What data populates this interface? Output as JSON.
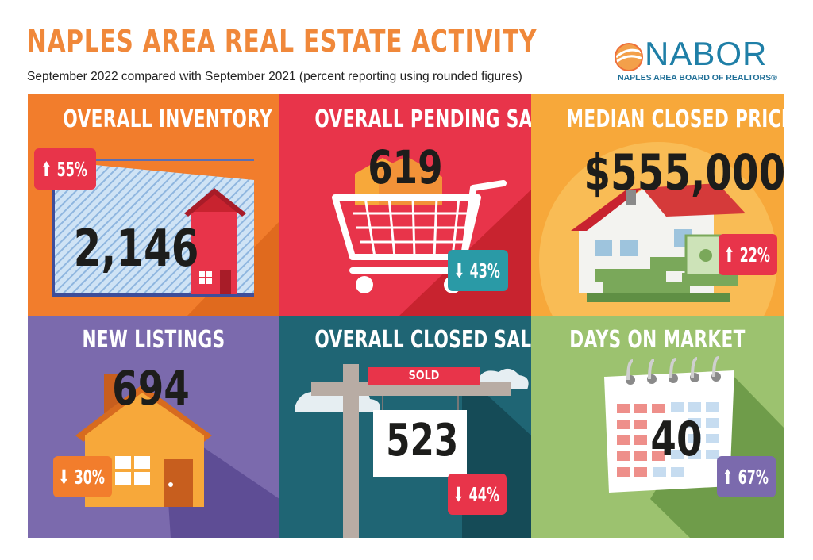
{
  "header": {
    "title": "NAPLES AREA REAL ESTATE ACTIVITY",
    "subtitle": "September 2022 compared with September 2021 (percent reporting using rounded figures)"
  },
  "logo": {
    "wordmark": "NABOR",
    "tagline": "NAPLES AREA BOARD OF REALTORS®"
  },
  "colors": {
    "title": "#f0883a",
    "orange": "#f27d2c",
    "red": "#e8344a",
    "amber": "#f7a83a",
    "purple": "#7b6aad",
    "teal": "#1f6574",
    "green": "#9cc26f"
  },
  "tiles": [
    {
      "title": "OVERALL INVENTORY",
      "value": "2,146",
      "change": "55%",
      "direction": "up",
      "icon": "house-chart-icon"
    },
    {
      "title": "OVERALL PENDING SALES",
      "value": "619",
      "change": "43%",
      "direction": "down",
      "icon": "shopping-cart-icon"
    },
    {
      "title": "MEDIAN CLOSED PRICE",
      "value": "$555,000",
      "change": "22%",
      "direction": "up",
      "icon": "house-money-icon"
    },
    {
      "title": "NEW LISTINGS",
      "value": "694",
      "change": "30%",
      "direction": "down",
      "icon": "house-icon"
    },
    {
      "title": "OVERALL CLOSED SALES",
      "value": "523",
      "change": "44%",
      "direction": "down",
      "icon": "sold-sign-icon",
      "sign_label": "SOLD"
    },
    {
      "title": "DAYS ON MARKET",
      "value": "40",
      "change": "67%",
      "direction": "up",
      "icon": "calendar-icon"
    }
  ]
}
